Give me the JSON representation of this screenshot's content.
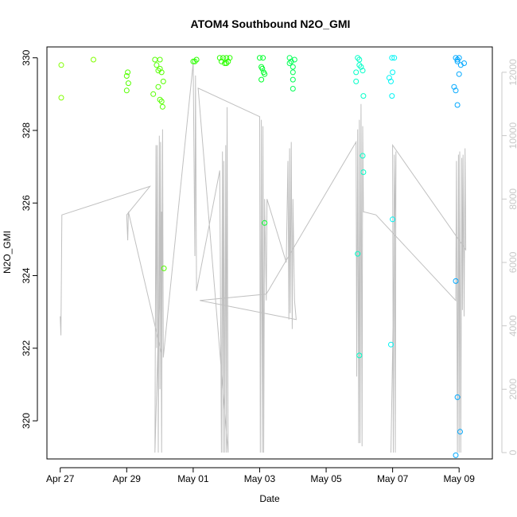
{
  "chart_data": {
    "type": "scatter",
    "title": "ATOM4 Southbound N2O_GMI",
    "xlabel": "Date",
    "ylabel": "N2O_GMI",
    "x_tick_labels": [
      "Apr 27",
      "Apr 29",
      "May 01",
      "May 03",
      "May 05",
      "May 07",
      "May 09"
    ],
    "x_tick_days": [
      0,
      2,
      4,
      6,
      8,
      10,
      12
    ],
    "xlim_days": [
      -0.4,
      13.0
    ],
    "ylim": [
      318.95,
      330.3
    ],
    "y_ticks": [
      320,
      322,
      324,
      326,
      328,
      330
    ],
    "y_tick_labels": [
      "320",
      "322",
      "324",
      "326",
      "328",
      "330"
    ],
    "y2lim": [
      -200,
      12800
    ],
    "y2_ticks": [
      0,
      2000,
      4000,
      6000,
      8000,
      10000,
      12000
    ],
    "y2_tick_labels": [
      "0",
      "2000",
      "4000",
      "6000",
      "8000",
      "10000",
      "12000"
    ],
    "y2_color": "#c8c8c8",
    "line_color": "#c0c0c0",
    "grid": false,
    "point_groups": [
      {
        "color": "#80ff00",
        "points": [
          [
            0.03,
            329.8
          ],
          [
            0.03,
            328.9
          ],
          [
            1.0,
            329.95
          ]
        ]
      },
      {
        "color": "#55ff00",
        "points": [
          [
            2.0,
            329.5
          ],
          [
            2.03,
            329.6
          ],
          [
            2.0,
            329.1
          ],
          [
            2.05,
            329.3
          ],
          [
            2.8,
            329.0
          ],
          [
            2.85,
            329.95
          ],
          [
            2.9,
            329.8
          ],
          [
            2.95,
            329.65
          ],
          [
            2.95,
            329.2
          ],
          [
            3.0,
            329.95
          ],
          [
            3.0,
            329.7
          ],
          [
            3.05,
            329.6
          ],
          [
            3.1,
            329.35
          ],
          [
            3.0,
            328.85
          ],
          [
            3.05,
            328.8
          ],
          [
            3.08,
            328.65
          ],
          [
            3.12,
            324.2
          ]
        ]
      },
      {
        "color": "#2bff00",
        "points": [
          [
            4.0,
            329.9
          ],
          [
            4.05,
            329.9
          ],
          [
            4.1,
            329.95
          ],
          [
            4.8,
            330.0
          ],
          [
            4.85,
            329.9
          ],
          [
            4.9,
            330.0
          ],
          [
            4.95,
            329.85
          ],
          [
            5.0,
            330.0
          ],
          [
            5.05,
            329.9
          ],
          [
            5.1,
            330.0
          ],
          [
            5.0,
            329.85
          ]
        ]
      },
      {
        "color": "#00ff2b",
        "points": [
          [
            6.0,
            330.0
          ],
          [
            6.05,
            329.75
          ],
          [
            6.08,
            329.7
          ],
          [
            6.1,
            330.0
          ],
          [
            6.12,
            329.6
          ],
          [
            6.05,
            329.4
          ],
          [
            6.15,
            329.55
          ],
          [
            6.15,
            325.45
          ]
        ]
      },
      {
        "color": "#00ff55",
        "points": [
          [
            6.9,
            330.0
          ],
          [
            6.9,
            329.85
          ],
          [
            6.95,
            329.9
          ],
          [
            7.0,
            329.75
          ],
          [
            7.0,
            329.6
          ],
          [
            7.05,
            329.95
          ],
          [
            7.0,
            329.4
          ],
          [
            7.0,
            329.15
          ]
        ]
      },
      {
        "color": "#00ffc8",
        "points": [
          [
            8.9,
            329.35
          ],
          [
            8.9,
            329.6
          ],
          [
            8.95,
            330.0
          ],
          [
            9.0,
            329.95
          ],
          [
            9.0,
            329.8
          ],
          [
            9.05,
            329.75
          ],
          [
            9.1,
            329.65
          ],
          [
            9.12,
            328.95
          ],
          [
            9.1,
            327.3
          ],
          [
            9.12,
            326.85
          ],
          [
            8.95,
            324.6
          ],
          [
            9.0,
            321.8
          ]
        ]
      },
      {
        "color": "#00f4f4",
        "points": [
          [
            9.9,
            329.45
          ],
          [
            9.95,
            329.35
          ],
          [
            9.98,
            330.0
          ],
          [
            10.0,
            329.6
          ],
          [
            10.05,
            330.0
          ],
          [
            9.98,
            328.95
          ],
          [
            10.0,
            325.55
          ],
          [
            9.95,
            322.1
          ]
        ]
      },
      {
        "color": "#00a8ff",
        "points": [
          [
            11.9,
            330.0
          ],
          [
            11.95,
            329.95
          ],
          [
            12.0,
            330.0
          ],
          [
            11.95,
            329.9
          ],
          [
            12.05,
            329.8
          ],
          [
            12.15,
            329.85
          ],
          [
            11.85,
            329.2
          ],
          [
            11.9,
            329.1
          ],
          [
            12.0,
            329.55
          ],
          [
            11.95,
            328.7
          ],
          [
            11.9,
            323.85
          ],
          [
            11.95,
            320.65
          ],
          [
            12.03,
            319.7
          ],
          [
            11.9,
            319.05
          ]
        ]
      }
    ],
    "line_series": {
      "name": "",
      "axis": "right",
      "note_units": "secondary axis units",
      "points": [
        [
          0.0,
          4300
        ],
        [
          0.02,
          3700
        ],
        [
          0.05,
          7500
        ],
        [
          2.7,
          8400
        ],
        [
          2.0,
          7500
        ],
        [
          2.03,
          6700
        ],
        [
          2.05,
          7600
        ],
        [
          3.05,
          3100
        ],
        [
          3.05,
          7600
        ],
        [
          2.85,
          0
        ],
        [
          2.88,
          9700
        ],
        [
          2.9,
          3300
        ],
        [
          2.92,
          9700
        ],
        [
          2.95,
          0
        ],
        [
          2.98,
          10000
        ],
        [
          3.0,
          2000
        ],
        [
          3.02,
          9800
        ],
        [
          3.05,
          0
        ],
        [
          3.08,
          10200
        ],
        [
          3.1,
          3000
        ],
        [
          4.0,
          12300
        ],
        [
          4.05,
          6200
        ],
        [
          4.07,
          11900
        ],
        [
          4.1,
          5100
        ],
        [
          4.8,
          8900
        ],
        [
          4.85,
          0
        ],
        [
          4.88,
          9500
        ],
        [
          4.9,
          0
        ],
        [
          4.92,
          9200
        ],
        [
          4.95,
          0
        ],
        [
          4.98,
          9700
        ],
        [
          5.0,
          0
        ],
        [
          5.02,
          10900
        ],
        [
          5.05,
          0
        ],
        [
          4.15,
          11500
        ],
        [
          6.0,
          10600
        ],
        [
          6.02,
          0
        ],
        [
          6.05,
          10500
        ],
        [
          6.08,
          0
        ],
        [
          6.1,
          10300
        ],
        [
          6.12,
          0
        ],
        [
          6.15,
          8000
        ],
        [
          6.2,
          4800
        ],
        [
          6.22,
          8000
        ],
        [
          6.8,
          6000
        ],
        [
          6.85,
          9200
        ],
        [
          6.88,
          4200
        ],
        [
          6.9,
          9600
        ],
        [
          6.92,
          4400
        ],
        [
          6.95,
          9800
        ],
        [
          6.98,
          3900
        ],
        [
          7.0,
          8000
        ],
        [
          7.05,
          4800
        ],
        [
          7.1,
          4200
        ],
        [
          4.2,
          4800
        ],
        [
          6.2,
          5000
        ],
        [
          8.9,
          9800
        ],
        [
          8.92,
          2400
        ],
        [
          8.95,
          10200
        ],
        [
          8.98,
          300
        ],
        [
          9.0,
          10500
        ],
        [
          9.02,
          300
        ],
        [
          9.05,
          11000
        ],
        [
          9.08,
          200
        ],
        [
          9.1,
          10300
        ],
        [
          9.12,
          7600
        ],
        [
          9.5,
          7500
        ],
        [
          11.9,
          4800
        ],
        [
          11.92,
          9200
        ],
        [
          11.95,
          0
        ],
        [
          11.98,
          9400
        ],
        [
          12.0,
          0
        ],
        [
          12.02,
          9500
        ],
        [
          12.05,
          0
        ],
        [
          12.08,
          9300
        ],
        [
          12.1,
          4500
        ],
        [
          12.12,
          9400
        ],
        [
          12.15,
          4300
        ],
        [
          12.18,
          9600
        ],
        [
          12.2,
          6400
        ],
        [
          10.0,
          9700
        ],
        [
          10.02,
          0
        ],
        [
          10.05,
          9400
        ],
        [
          10.08,
          0
        ],
        [
          10.1,
          9500
        ],
        [
          9.95,
          0
        ]
      ]
    }
  }
}
